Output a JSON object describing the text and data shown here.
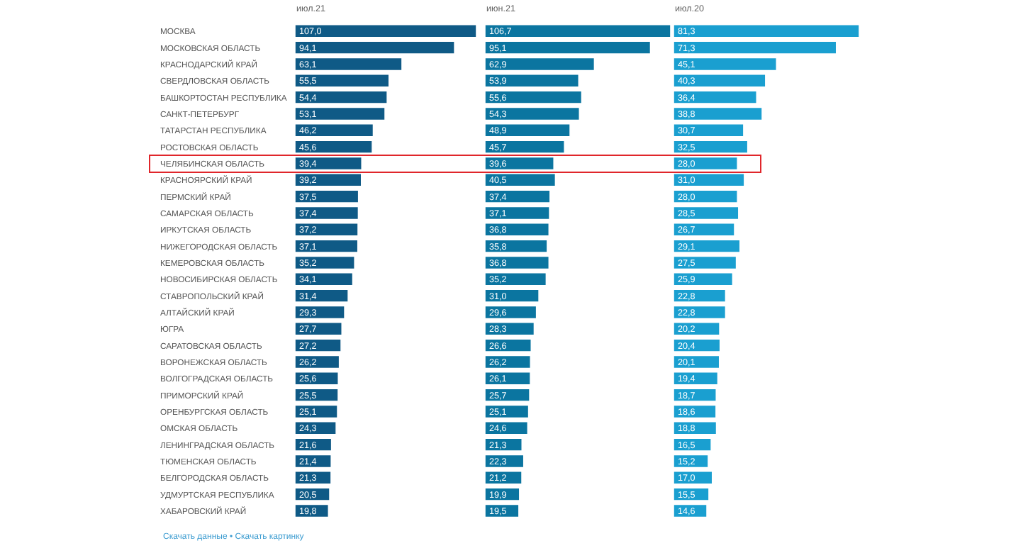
{
  "chart_data": [
    {
      "type": "bar",
      "orientation": "horizontal",
      "title": "июл.21",
      "tick_labels": "y",
      "xlim": [
        0,
        107
      ],
      "categories": [
        "МОСКВА",
        "МОСКОВСКАЯ ОБЛАСТЬ",
        "КРАСНОДАРСКИЙ КРАЙ",
        "СВЕРДЛОВСКАЯ ОБЛАСТЬ",
        "БАШКОРТОСТАН РЕСПУБЛИКА",
        "САНКТ-ПЕТЕРБУРГ",
        "ТАТАРСТАН РЕСПУБЛИКА",
        "РОСТОВСКАЯ ОБЛАСТЬ",
        "ЧЕЛЯБИНСКАЯ ОБЛАСТЬ",
        "КРАСНОЯРСКИЙ КРАЙ",
        "ПЕРМСКИЙ КРАЙ",
        "САМАРСКАЯ ОБЛАСТЬ",
        "ИРКУТСКАЯ ОБЛАСТЬ",
        "НИЖЕГОРОДСКАЯ ОБЛАСТЬ",
        "КЕМЕРОВСКАЯ ОБЛАСТЬ",
        "НОВОСИБИРСКАЯ ОБЛАСТЬ",
        "СТАВРОПОЛЬСКИЙ КРАЙ",
        "АЛТАЙСКИЙ КРАЙ",
        "ЮГРА",
        "САРАТОВСКАЯ ОБЛАСТЬ",
        "ВОРОНЕЖСКАЯ ОБЛАСТЬ",
        "ВОЛГОГРАДСКАЯ ОБЛАСТЬ",
        "ПРИМОРСКИЙ КРАЙ",
        "ОРЕНБУРГСКАЯ ОБЛАСТЬ",
        "ОМСКАЯ ОБЛАСТЬ",
        "ЛЕНИНГРАДСКАЯ ОБЛАСТЬ",
        "ТЮМЕНСКАЯ ОБЛАСТЬ",
        "БЕЛГОРОДСКАЯ ОБЛАСТЬ",
        "УДМУРТСКАЯ РЕСПУБЛИКА",
        "ХАБАРОВСКИЙ КРАЙ"
      ],
      "series": [
        {
          "color": "#0f5a86",
          "values": [
            107.0,
            94.1,
            63.1,
            55.5,
            54.4,
            53.1,
            46.2,
            45.6,
            39.4,
            39.2,
            37.5,
            37.4,
            37.2,
            37.1,
            35.2,
            34.1,
            31.4,
            29.3,
            27.7,
            27.2,
            26.2,
            25.6,
            25.5,
            25.1,
            24.3,
            21.6,
            21.4,
            21.3,
            20.5,
            19.8
          ],
          "value_labels": [
            "107,0",
            "94,1",
            "63,1",
            "55,5",
            "54,4",
            "53,1",
            "46,2",
            "45,6",
            "39,4",
            "39,2",
            "37,5",
            "37,4",
            "37,2",
            "37,1",
            "35,2",
            "34,1",
            "31,4",
            "29,3",
            "27,7",
            "27,2",
            "26,2",
            "25,6",
            "25,5",
            "25,1",
            "24,3",
            "21,6",
            "21,4",
            "21,3",
            "20,5",
            "19,8"
          ]
        }
      ],
      "annotations": [
        "Скачать данные • Скачать картинку"
      ]
    },
    {
      "type": "bar",
      "orientation": "horizontal",
      "title": "июн.21",
      "tick_labels": false,
      "xlim": [
        0,
        106.7
      ],
      "categories": [
        null,
        null,
        null,
        null,
        null,
        null,
        null,
        null,
        null,
        null,
        null,
        null,
        null,
        null,
        null,
        null,
        null,
        null,
        null,
        null,
        null,
        null,
        null,
        null,
        null,
        null,
        null,
        null,
        null,
        null
      ],
      "series": [
        {
          "color": "#0b75a0",
          "values": [
            106.7,
            95.1,
            62.9,
            53.9,
            55.6,
            54.3,
            48.9,
            45.7,
            39.6,
            40.5,
            37.4,
            37.1,
            36.8,
            35.8,
            36.8,
            35.2,
            31.0,
            29.6,
            28.3,
            26.6,
            26.2,
            26.1,
            25.7,
            25.1,
            24.6,
            21.3,
            22.3,
            21.2,
            19.9,
            19.5
          ],
          "value_labels": [
            "106,7",
            "95,1",
            "62,9",
            "53,9",
            "55,6",
            "54,3",
            "48,9",
            "45,7",
            "39,6",
            "40,5",
            "37,4",
            "37,1",
            "36,8",
            "35,8",
            "36,8",
            "35,2",
            "31,0",
            "29,6",
            "28,3",
            "26,6",
            "26,2",
            "26,1",
            "25,7",
            "25,1",
            "24,6",
            "21,3",
            "22,3",
            "21,2",
            "19,9",
            "19,5"
          ]
        }
      ]
    },
    {
      "type": "bar",
      "orientation": "horizontal",
      "title": "июл.20",
      "tick_labels": false,
      "xlim": [
        0,
        81.3
      ],
      "categories": [
        null,
        null,
        null,
        null,
        null,
        null,
        null,
        null,
        null,
        null,
        null,
        null,
        null,
        null,
        null,
        null,
        null,
        null,
        null,
        null,
        null,
        null,
        null,
        null,
        null,
        null,
        null,
        null,
        null,
        null
      ],
      "series": [
        {
          "color": "#1a9fd0",
          "values": [
            81.3,
            71.3,
            45.1,
            40.3,
            36.4,
            38.8,
            30.7,
            32.5,
            28.0,
            31.0,
            28.0,
            28.5,
            26.7,
            29.1,
            27.5,
            25.9,
            22.8,
            22.8,
            20.2,
            20.4,
            20.1,
            19.4,
            18.7,
            18.6,
            18.8,
            16.5,
            15.2,
            17.0,
            15.5,
            14.6
          ],
          "value_labels": [
            "81,3",
            "71,3",
            "45,1",
            "40,3",
            "36,4",
            "38,8",
            "30,7",
            "32,5",
            "28,0",
            "31,0",
            "28,0",
            "28,5",
            "26,7",
            "29,1",
            "27,5",
            "25,9",
            "22,8",
            "22,8",
            "20,2",
            "20,4",
            "20,1",
            "19,4",
            "18,7",
            "18,6",
            "18,8",
            "16,5",
            "15,2",
            "17,0",
            "15,5",
            "14,6"
          ]
        }
      ]
    }
  ]
}
